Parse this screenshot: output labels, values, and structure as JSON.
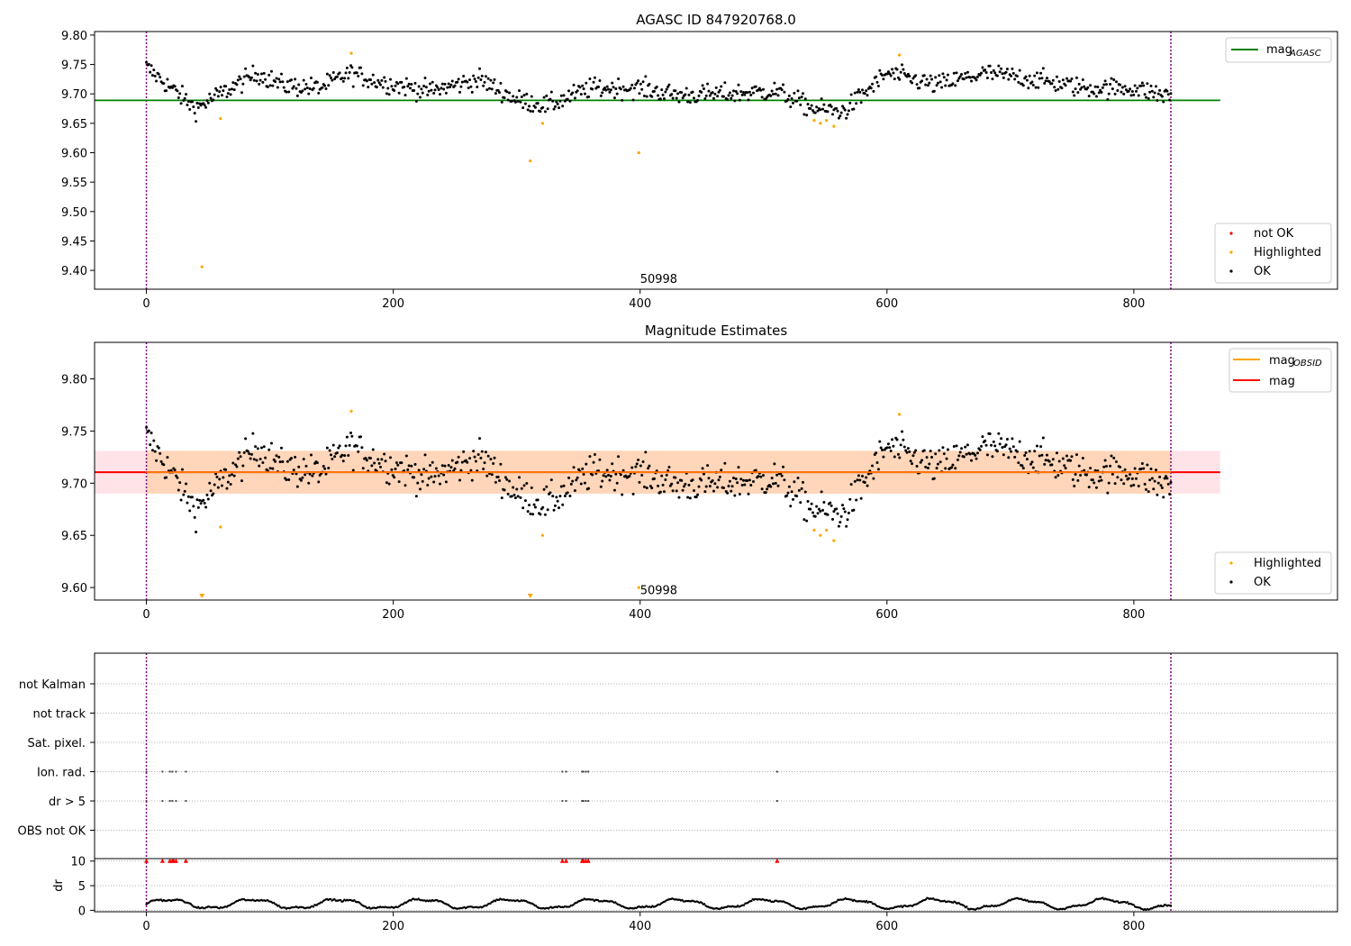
{
  "chart_data": [
    {
      "type": "scatter",
      "title": "AGASC ID 847920768.0",
      "xlabel": "",
      "ylabel": "",
      "xlim": [
        -42,
        965
      ],
      "ylim": [
        9.368,
        9.806
      ],
      "xticks": [
        0,
        200,
        400,
        600,
        800
      ],
      "yticks": [
        9.4,
        9.45,
        9.5,
        9.55,
        9.6,
        9.65,
        9.7,
        9.75,
        9.8
      ],
      "ytick_labels": [
        "9.40",
        "9.45",
        "9.50",
        "9.55",
        "9.60",
        "9.65",
        "9.70",
        "9.75",
        "9.80"
      ],
      "hline": {
        "label": "mag",
        "sub": "AGASC",
        "y": 9.689,
        "x_range": [
          -42,
          870
        ],
        "color": "#008000"
      },
      "vlines": [
        0,
        830
      ],
      "annotation": {
        "text": "50998",
        "x": 400,
        "y": 9.385
      },
      "legend_top": {
        "placement": "top-right"
      },
      "legend_bottom": {
        "placement": "bottom-right",
        "entries": [
          {
            "label": "not OK",
            "color": "#ff0000"
          },
          {
            "label": "Highlighted",
            "color": "#ffa500"
          },
          {
            "label": "OK",
            "color": "#000000"
          }
        ]
      },
      "series": [
        {
          "name": "OK",
          "color": "#000000",
          "n": 828,
          "x_range": [
            0,
            830
          ],
          "trend": [
            [
              0,
              9.745
            ],
            [
              20,
              9.71
            ],
            [
              40,
              9.675
            ],
            [
              60,
              9.7
            ],
            [
              90,
              9.735
            ],
            [
              110,
              9.715
            ],
            [
              140,
              9.71
            ],
            [
              165,
              9.735
            ],
            [
              190,
              9.72
            ],
            [
              230,
              9.705
            ],
            [
              270,
              9.725
            ],
            [
              300,
              9.69
            ],
            [
              325,
              9.68
            ],
            [
              360,
              9.71
            ],
            [
              400,
              9.71
            ],
            [
              430,
              9.698
            ],
            [
              470,
              9.7
            ],
            [
              510,
              9.705
            ],
            [
              540,
              9.675
            ],
            [
              565,
              9.67
            ],
            [
              600,
              9.735
            ],
            [
              640,
              9.715
            ],
            [
              680,
              9.735
            ],
            [
              720,
              9.725
            ],
            [
              760,
              9.71
            ],
            [
              800,
              9.71
            ],
            [
              830,
              9.695
            ]
          ],
          "noise": 0.016
        },
        {
          "name": "Highlighted",
          "color": "#ffa500",
          "points": [
            [
              45,
              9.406
            ],
            [
              60,
              9.658
            ],
            [
              166,
              9.769
            ],
            [
              311,
              9.586
            ],
            [
              321,
              9.65
            ],
            [
              399,
              9.6
            ],
            [
              541,
              9.655
            ],
            [
              546,
              9.65
            ],
            [
              551,
              9.655
            ],
            [
              557,
              9.645
            ],
            [
              610,
              9.766
            ]
          ]
        }
      ]
    },
    {
      "type": "scatter",
      "title": "Magnitude Estimates",
      "xlabel": "",
      "ylabel": "",
      "xlim": [
        -42,
        965
      ],
      "ylim": [
        9.588,
        9.835
      ],
      "xticks": [
        0,
        200,
        400,
        600,
        800
      ],
      "yticks": [
        9.6,
        9.65,
        9.7,
        9.75,
        9.8
      ],
      "ytick_labels": [
        "9.60",
        "9.65",
        "9.70",
        "9.75",
        "9.80"
      ],
      "hlines": [
        {
          "label": "mag",
          "sub": "OBSID",
          "y": 9.7105,
          "x_range": [
            0,
            830
          ],
          "color": "#ffa500"
        },
        {
          "label": "mag",
          "y": 9.7105,
          "x_range": [
            -42,
            870
          ],
          "color": "#ff0000"
        }
      ],
      "bands": [
        {
          "y_range": [
            9.69,
            9.731
          ],
          "x_range": [
            -42,
            870
          ],
          "color": "#ffc0cb"
        },
        {
          "y_range": [
            9.69,
            9.731
          ],
          "x_range": [
            0,
            830
          ],
          "color": "#ffa500"
        }
      ],
      "vlines": [
        0,
        830
      ],
      "annotation": {
        "text": "50998",
        "x": 400,
        "y": 9.597
      },
      "clipped_markers": [
        45,
        311
      ],
      "legend_top": {
        "placement": "top-right"
      },
      "legend_bottom": {
        "placement": "bottom-right",
        "entries": [
          {
            "label": "Highlighted",
            "color": "#ffa500"
          },
          {
            "label": "OK",
            "color": "#000000"
          }
        ]
      }
    },
    {
      "type": "scatter",
      "xlabel": "",
      "ylabel": "dr",
      "xlim": [
        -42,
        965
      ],
      "xticks": [
        0,
        200,
        400,
        600,
        800
      ],
      "flag_rows": [
        "not Kalman",
        "not track",
        "Sat. pixel.",
        "Ion. rad.",
        "dr > 5",
        "OBS not OK"
      ],
      "flag_points": [
        0,
        13,
        19,
        21,
        24,
        32,
        337,
        340,
        353,
        354,
        356,
        358,
        511
      ],
      "flag_rows_marked": [
        "Ion. rad.",
        "dr > 5"
      ],
      "dr_ylim": [
        -0.3,
        10.5
      ],
      "dr_yticks": [
        0,
        5,
        10
      ],
      "dr_ytick_labels": [
        "0",
        "5",
        "10"
      ],
      "dr_series": {
        "name": "dr",
        "n": 829,
        "x_range": [
          0,
          830
        ]
      },
      "dr_outliers": [
        0,
        13,
        19,
        21,
        22,
        24,
        32,
        337,
        340,
        353,
        354,
        356,
        358,
        511
      ],
      "dr_outlier_value": 10,
      "vlines": [
        0,
        830
      ]
    }
  ],
  "colors": {
    "axis": "#000000",
    "vline": "#800080",
    "grid": "#b0b0b0"
  }
}
